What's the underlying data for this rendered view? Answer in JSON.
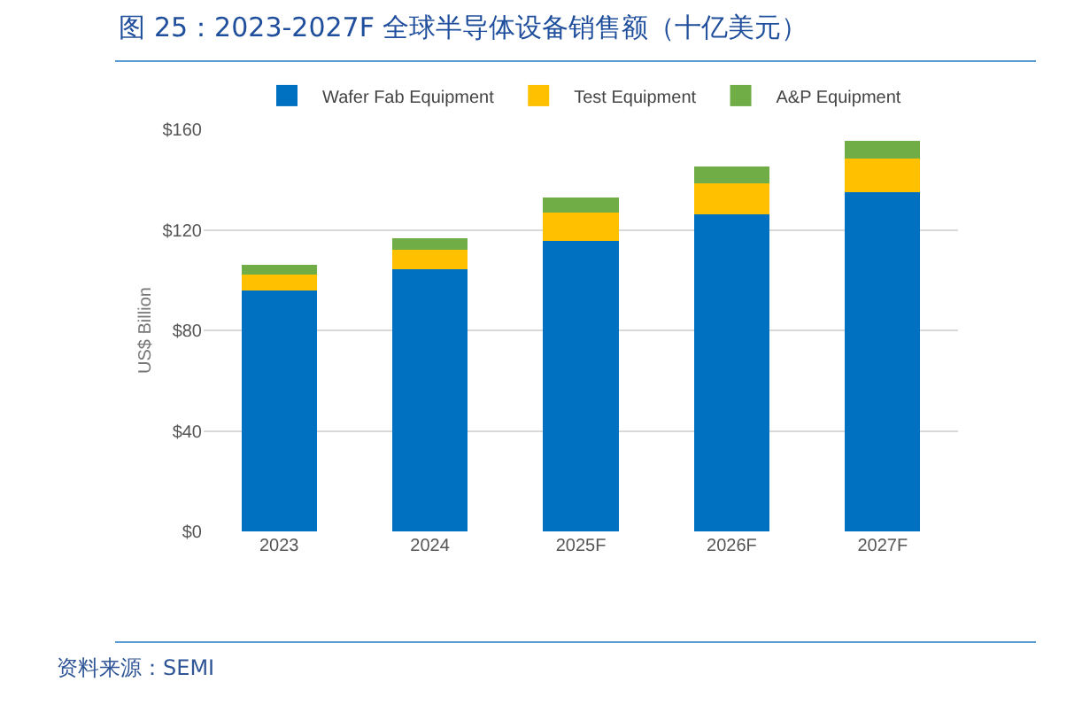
{
  "chart_data": {
    "type": "bar",
    "title": "图 25：2023-2027F 全球半导体设备销售额（十亿美元）",
    "categories": [
      "2023",
      "2024",
      "2025F",
      "2026F",
      "2027F"
    ],
    "series": [
      {
        "name": "Wafer Fab Equipment",
        "color": "#0070c0",
        "values": [
          95.7,
          104.2,
          115.7,
          126.2,
          135.1
        ]
      },
      {
        "name": "Test Equipment",
        "color": "#ffc000",
        "values": [
          6.4,
          7.7,
          11.0,
          12.2,
          13.2
        ]
      },
      {
        "name": "A&P Equipment",
        "color": "#70ad47",
        "values": [
          3.9,
          4.9,
          6.1,
          6.8,
          7.0
        ]
      }
    ],
    "stacked": true,
    "ylabel": "US$ Billion",
    "ylim": [
      0,
      160
    ],
    "yticks": [
      {
        "value": 0,
        "label": "$0"
      },
      {
        "value": 40,
        "label": "$40"
      },
      {
        "value": 80,
        "label": "$80"
      },
      {
        "value": 120,
        "label": "$120"
      },
      {
        "value": 160,
        "label": "$160"
      }
    ],
    "grid": "y",
    "legend": "top",
    "annotations": [
      "资料来源：SEMI"
    ]
  }
}
